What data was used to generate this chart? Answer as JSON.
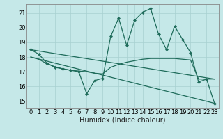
{
  "xlabel": "Humidex (Indice chaleur)",
  "bg_color": "#c5e8e8",
  "line_color": "#1e6b5a",
  "grid_color": "#a8d0d0",
  "xlim": [
    -0.5,
    23.5
  ],
  "ylim": [
    14.5,
    21.6
  ],
  "yticks": [
    15,
    16,
    17,
    18,
    19,
    20,
    21
  ],
  "xticks": [
    0,
    1,
    2,
    3,
    4,
    5,
    6,
    7,
    8,
    9,
    10,
    11,
    12,
    13,
    14,
    15,
    16,
    17,
    18,
    19,
    20,
    21,
    22,
    23
  ],
  "main_x": [
    0,
    1,
    2,
    3,
    4,
    5,
    6,
    7,
    8,
    9,
    10,
    11,
    12,
    13,
    14,
    15,
    16,
    17,
    18,
    19,
    20,
    21,
    22,
    23
  ],
  "main_y": [
    18.5,
    18.2,
    17.6,
    17.3,
    17.2,
    17.1,
    17.0,
    15.5,
    16.4,
    16.55,
    19.4,
    20.65,
    18.8,
    20.5,
    21.05,
    21.3,
    19.55,
    18.5,
    20.1,
    19.2,
    18.3,
    16.3,
    16.5,
    14.85
  ],
  "extra_lines": [
    {
      "x": [
        0,
        1,
        2,
        3,
        4,
        5,
        6,
        7,
        8,
        9,
        10,
        11,
        12,
        13,
        14,
        15,
        16,
        17,
        18,
        19,
        20,
        21,
        22,
        23
      ],
      "y": [
        18.0,
        17.85,
        17.55,
        17.35,
        17.2,
        17.1,
        17.05,
        17.0,
        16.9,
        16.85,
        17.3,
        17.5,
        17.65,
        17.75,
        17.85,
        17.9,
        17.9,
        17.9,
        17.9,
        17.85,
        17.8,
        16.5,
        16.5,
        16.5
      ]
    },
    {
      "x": [
        0,
        23
      ],
      "y": [
        18.5,
        16.5
      ]
    },
    {
      "x": [
        0,
        23
      ],
      "y": [
        18.0,
        14.85
      ]
    }
  ],
  "xlabel_fontsize": 7,
  "tick_fontsize": 6
}
